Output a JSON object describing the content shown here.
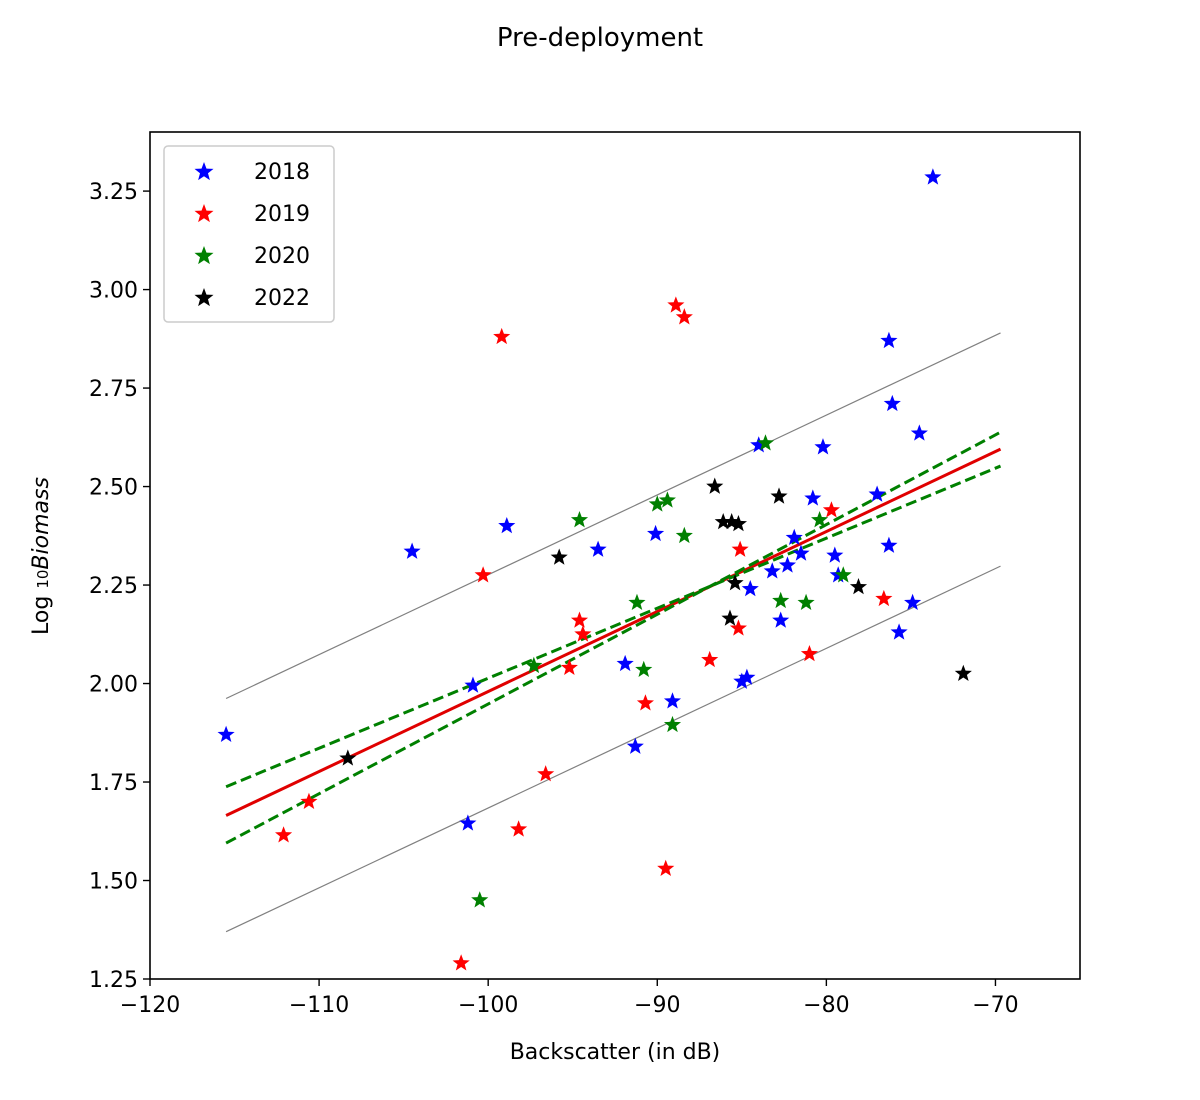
{
  "chart_data": {
    "type": "scatter",
    "title": "Pre-deployment",
    "xlabel": "Backscatter (in dB)",
    "ylabel_prefix": "Log ",
    "ylabel_sub": "10",
    "ylabel_main": "Biomass",
    "xlim": [
      -120,
      -65
    ],
    "ylim": [
      1.25,
      3.4
    ],
    "xticks": [
      "−120",
      "−110",
      "−100",
      "−90",
      "−80",
      "−70"
    ],
    "xtick_values": [
      -120,
      -110,
      -100,
      -90,
      -80,
      -70
    ],
    "yticks": [
      "1.25",
      "1.50",
      "1.75",
      "2.00",
      "2.25",
      "2.50",
      "2.75",
      "3.00",
      "3.25"
    ],
    "ytick_values": [
      1.25,
      1.5,
      1.75,
      2.0,
      2.25,
      2.5,
      2.75,
      3.0,
      3.25
    ],
    "grid": false,
    "legend_position": "upper-left",
    "series": [
      {
        "name": "2018",
        "color": "#0000ff",
        "marker": "star",
        "points": [
          [
            -115.5,
            1.87
          ],
          [
            -104.5,
            2.335
          ],
          [
            -101.2,
            1.645
          ],
          [
            -100.9,
            1.995
          ],
          [
            -98.9,
            2.4
          ],
          [
            -93.5,
            2.34
          ],
          [
            -91.9,
            2.05
          ],
          [
            -91.3,
            1.84
          ],
          [
            -90.1,
            2.38
          ],
          [
            -89.1,
            1.955
          ],
          [
            -85.0,
            2.005
          ],
          [
            -84.7,
            2.015
          ],
          [
            -84.5,
            2.24
          ],
          [
            -84.0,
            2.605
          ],
          [
            -83.2,
            2.285
          ],
          [
            -82.7,
            2.16
          ],
          [
            -82.3,
            2.3
          ],
          [
            -81.9,
            2.37
          ],
          [
            -81.5,
            2.33
          ],
          [
            -80.8,
            2.47
          ],
          [
            -80.2,
            2.6
          ],
          [
            -79.5,
            2.325
          ],
          [
            -79.3,
            2.275
          ],
          [
            -77.0,
            2.48
          ],
          [
            -76.3,
            2.87
          ],
          [
            -76.3,
            2.35
          ],
          [
            -76.1,
            2.71
          ],
          [
            -75.7,
            2.13
          ],
          [
            -74.9,
            2.205
          ],
          [
            -74.5,
            2.635
          ],
          [
            -73.7,
            3.285
          ]
        ]
      },
      {
        "name": "2019",
        "color": "#ff0000",
        "marker": "star",
        "points": [
          [
            -112.1,
            1.615
          ],
          [
            -110.6,
            1.7
          ],
          [
            -101.6,
            1.29
          ],
          [
            -100.3,
            2.275
          ],
          [
            -99.2,
            2.88
          ],
          [
            -98.2,
            1.63
          ],
          [
            -96.6,
            1.77
          ],
          [
            -95.2,
            2.04
          ],
          [
            -94.6,
            2.16
          ],
          [
            -94.4,
            2.125
          ],
          [
            -90.7,
            1.95
          ],
          [
            -89.5,
            1.53
          ],
          [
            -88.9,
            2.96
          ],
          [
            -88.4,
            2.93
          ],
          [
            -86.9,
            2.06
          ],
          [
            -85.2,
            2.14
          ],
          [
            -85.1,
            2.34
          ],
          [
            -81.0,
            2.075
          ],
          [
            -79.7,
            2.44
          ],
          [
            -76.6,
            2.215
          ]
        ]
      },
      {
        "name": "2020",
        "color": "#008000",
        "marker": "star",
        "points": [
          [
            -100.5,
            1.45
          ],
          [
            -97.3,
            2.045
          ],
          [
            -94.6,
            2.415
          ],
          [
            -91.2,
            2.205
          ],
          [
            -90.8,
            2.035
          ],
          [
            -90.0,
            2.455
          ],
          [
            -89.4,
            2.465
          ],
          [
            -89.1,
            1.895
          ],
          [
            -88.4,
            2.375
          ],
          [
            -83.6,
            2.61
          ],
          [
            -82.7,
            2.21
          ],
          [
            -81.2,
            2.205
          ],
          [
            -80.4,
            2.415
          ],
          [
            -79.0,
            2.275
          ]
        ]
      },
      {
        "name": "2022",
        "color": "#000000",
        "marker": "star",
        "points": [
          [
            -108.3,
            1.81
          ],
          [
            -95.8,
            2.32
          ],
          [
            -86.6,
            2.5
          ],
          [
            -86.1,
            2.41
          ],
          [
            -85.6,
            2.41
          ],
          [
            -85.4,
            2.255
          ],
          [
            -85.2,
            2.405
          ],
          [
            -85.7,
            2.165
          ],
          [
            -82.8,
            2.475
          ],
          [
            -78.1,
            2.245
          ],
          [
            -71.9,
            2.025
          ]
        ]
      }
    ],
    "lines": [
      {
        "role": "fit",
        "color": "#e00000",
        "style": "solid",
        "from": [
          -115.5,
          1.665
        ],
        "to": [
          -69.7,
          2.595
        ]
      },
      {
        "role": "confidence-upper",
        "color": "#008000",
        "style": "dashed",
        "from": [
          -115.5,
          1.738
        ],
        "to": [
          -69.7,
          2.552
        ]
      },
      {
        "role": "confidence-lower",
        "color": "#008000",
        "style": "dashed",
        "from": [
          -115.5,
          1.595
        ],
        "to": [
          -69.7,
          2.638
        ]
      },
      {
        "role": "prediction-upper",
        "color": "#808080",
        "style": "thin",
        "from": [
          -115.5,
          1.962
        ],
        "to": [
          -69.7,
          2.89
        ]
      },
      {
        "role": "prediction-lower",
        "color": "#808080",
        "style": "thin",
        "from": [
          -115.5,
          1.37
        ],
        "to": [
          -69.7,
          2.298
        ]
      }
    ]
  }
}
